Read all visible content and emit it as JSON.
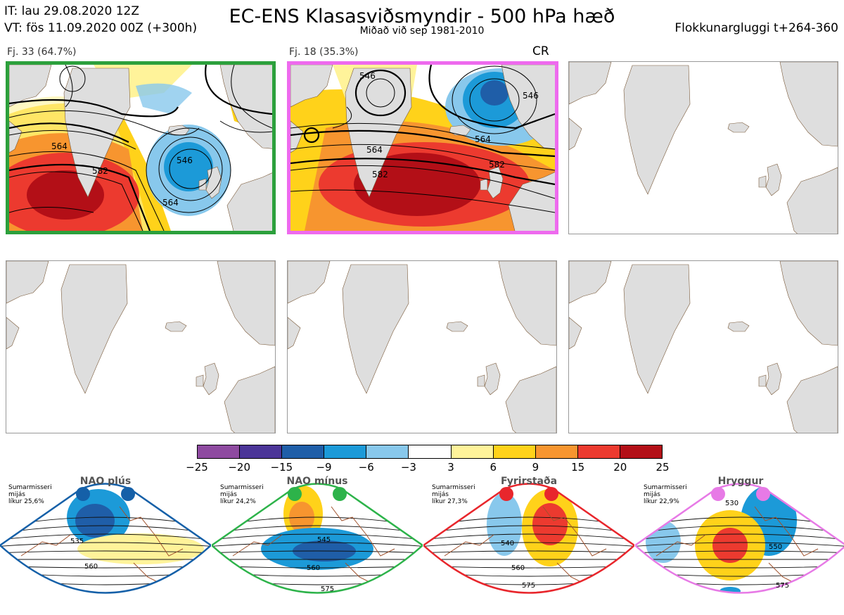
{
  "header": {
    "it": "IT: lau 29.08.2020 12Z",
    "vt": "VT: fös 11.09.2020 00Z  (+300h)",
    "title": "EC-ENS Klasasviðsmyndir - 500 hPa hæð",
    "subtitle": "Miðað við sep 1981-2010",
    "window": "Flokkunargluggi t+264-360"
  },
  "panels": [
    {
      "label": "Fj. 33 (64.7%)",
      "border": "#2ca03c",
      "tag": ""
    },
    {
      "label": "Fj. 18 (35.3%)",
      "border": "#ee6aee",
      "tag": "CR"
    }
  ],
  "contour_labels": {
    "p1": [
      "546",
      "564",
      "582",
      "564"
    ],
    "p2": [
      "546",
      "546",
      "564",
      "564",
      "582",
      "582"
    ]
  },
  "colorbar": {
    "colors": [
      "#8e4aa0",
      "#4b3598",
      "#1f5ea8",
      "#1c9ad8",
      "#88c8ec",
      "#ffffff",
      "#fff39a",
      "#ffd21a",
      "#f7952f",
      "#ec3a2f",
      "#b30f17"
    ],
    "labels": [
      "−25",
      "−20",
      "−15",
      "−9",
      "−6",
      "−3",
      "3",
      "6",
      "9",
      "15",
      "20",
      "25"
    ]
  },
  "regimes": [
    {
      "name": "NAO plús",
      "note1": "Sumarmisseri",
      "note2": "mijás",
      "note3": "líkur 25,6%",
      "color": "#1560a8",
      "labels": [
        "535",
        "560"
      ]
    },
    {
      "name": "NAO mínus",
      "note1": "Sumarmisseri",
      "note2": "mijás",
      "note3": "líkur 24,2%",
      "color": "#2db34a",
      "labels": [
        "545",
        "560",
        "575"
      ]
    },
    {
      "name": "Fyrirstaða",
      "note1": "Sumarmisseri",
      "note2": "mijás",
      "note3": "líkur 27,3%",
      "color": "#e8262c",
      "labels": [
        "540",
        "560",
        "575"
      ]
    },
    {
      "name": "Hryggur",
      "note1": "Sumarmisseri",
      "note2": "mijás",
      "note3": "líkur 22,9%",
      "color": "#e77ae6",
      "labels": [
        "530",
        "550",
        "575"
      ]
    }
  ]
}
